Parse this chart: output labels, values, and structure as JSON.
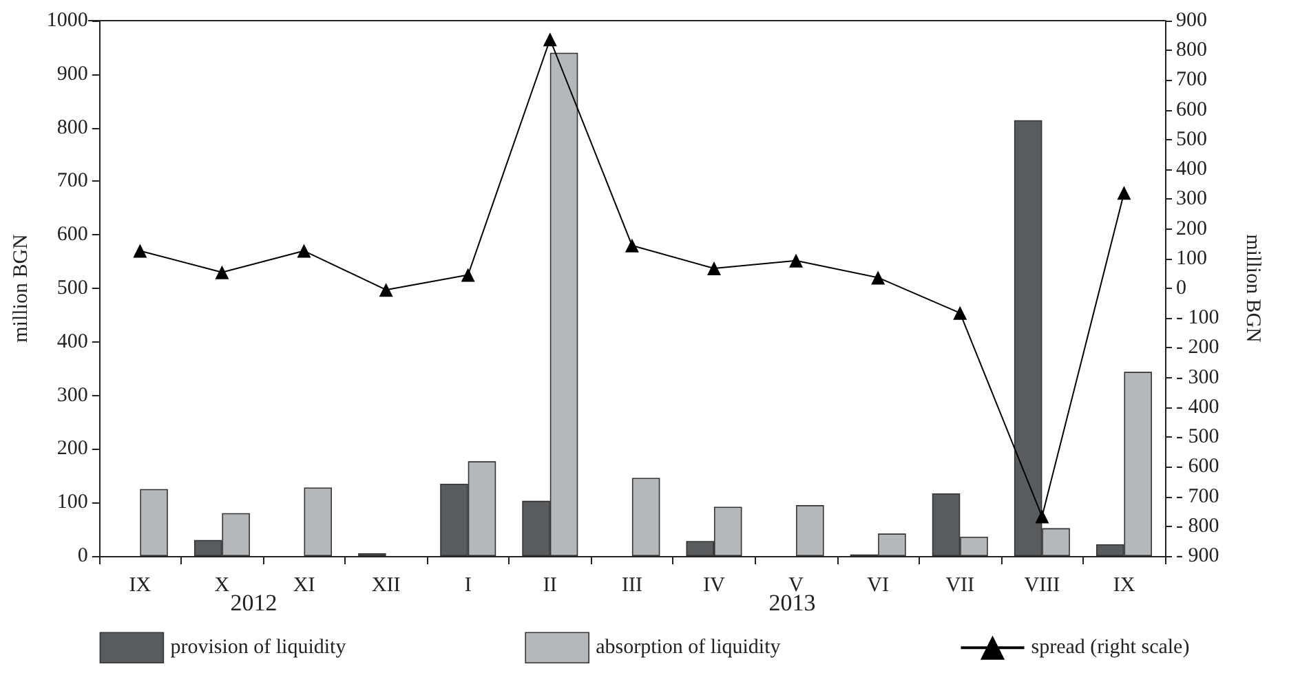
{
  "chart_data": {
    "type": "bar",
    "categories": [
      "IX",
      "X",
      "XI",
      "XII",
      "I",
      "II",
      "III",
      "IV",
      "V",
      "VI",
      "VII",
      "VIII",
      "IX"
    ],
    "series": [
      {
        "name": "provision of liquidity",
        "color": "#595c5f",
        "values": [
          null,
          30,
          null,
          5,
          135,
          103,
          null,
          28,
          null,
          3,
          117,
          814,
          22
        ]
      },
      {
        "name": "absorption of liquidity",
        "color": "#b5b8ba",
        "values": [
          125,
          80,
          128,
          null,
          177,
          940,
          146,
          92,
          95,
          42,
          36,
          52,
          344
        ]
      },
      {
        "name": "spread (right scale)",
        "type": "line",
        "axis": "y2",
        "color": "#000000",
        "marker": "triangle",
        "values": [
          126,
          54,
          126,
          -5,
          45,
          837,
          144,
          67,
          93,
          36,
          -83,
          -767,
          321
        ]
      }
    ],
    "ylabel": "million BGN",
    "y2label": "million BGN",
    "ylim": [
      0,
      1000
    ],
    "yticks": [
      0,
      100,
      200,
      300,
      400,
      500,
      600,
      700,
      800,
      900,
      1000
    ],
    "y2lim": [
      -900,
      900
    ],
    "y2ticks": [
      {
        "value": -900,
        "label": "- 900"
      },
      {
        "value": -800,
        "label": "- 800"
      },
      {
        "value": -700,
        "label": "- 700"
      },
      {
        "value": -600,
        "label": "- 600"
      },
      {
        "value": -500,
        "label": "- 500"
      },
      {
        "value": -400,
        "label": "- 400"
      },
      {
        "value": -300,
        "label": "- 300"
      },
      {
        "value": -200,
        "label": "- 200"
      },
      {
        "value": -100,
        "label": "- 100"
      },
      0,
      100,
      200,
      300,
      400,
      500,
      600,
      700,
      800,
      900
    ],
    "annotations": [
      "2012",
      "2013"
    ],
    "legend": "bottom",
    "grid": false
  }
}
